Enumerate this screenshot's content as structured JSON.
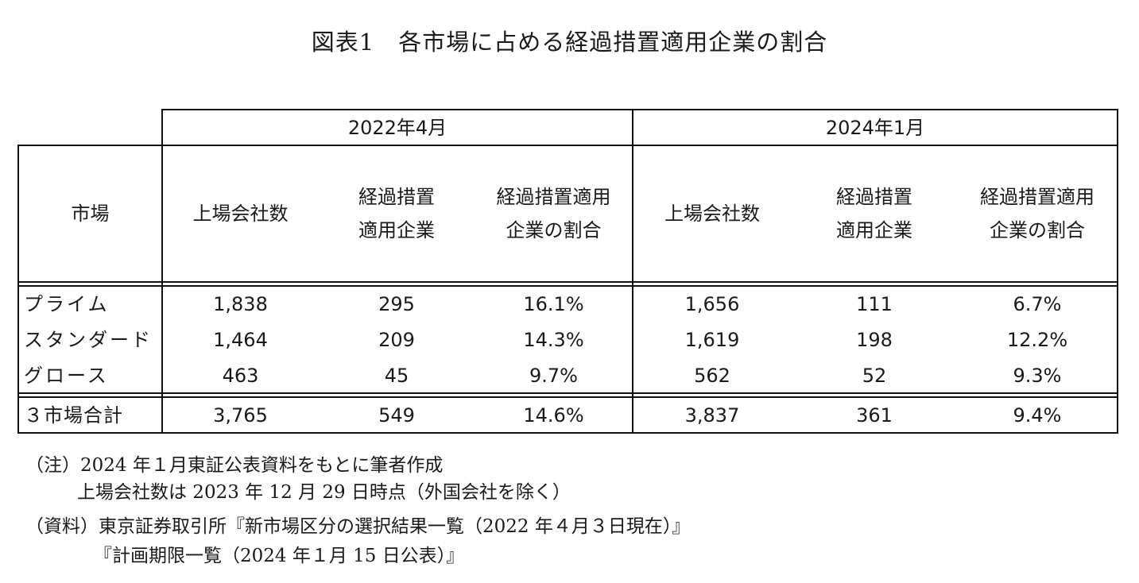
{
  "title": "図表1　各市場に占める経過措置適用企業の割合",
  "periods": [
    "2022年4月",
    "2024年1月"
  ],
  "headers": {
    "market": "市場",
    "listed": "上場会社数",
    "transitional": [
      "経過措置",
      "適用企業"
    ],
    "ratio": [
      "経過措置適用",
      "企業の割合"
    ]
  },
  "rows": [
    {
      "market": "プライム",
      "v": [
        "1,838",
        "295",
        "16.1%",
        "1,656",
        "111",
        "6.7%"
      ]
    },
    {
      "market": "スタンダード",
      "v": [
        "1,464",
        "209",
        "14.3%",
        "1,619",
        "198",
        "12.2%"
      ]
    },
    {
      "market": "グロース",
      "v": [
        "463",
        "45",
        "9.7%",
        "562",
        "52",
        "9.3%"
      ]
    }
  ],
  "total": {
    "market": "３市場合計",
    "v": [
      "3,765",
      "549",
      "14.6%",
      "3,837",
      "361",
      "9.4%"
    ]
  },
  "notes": [
    "（注）2024 年１月東証公表資料をもとに筆者作成",
    "上場会社数は 2023 年 12 月 29 日時点（外国会社を除く）",
    "（資料）東京証券取引所『新市場区分の選択結果一覧（2022 年４月３日現在）』",
    "『計画期限一覧（2024 年１月 15 日公表）』"
  ]
}
